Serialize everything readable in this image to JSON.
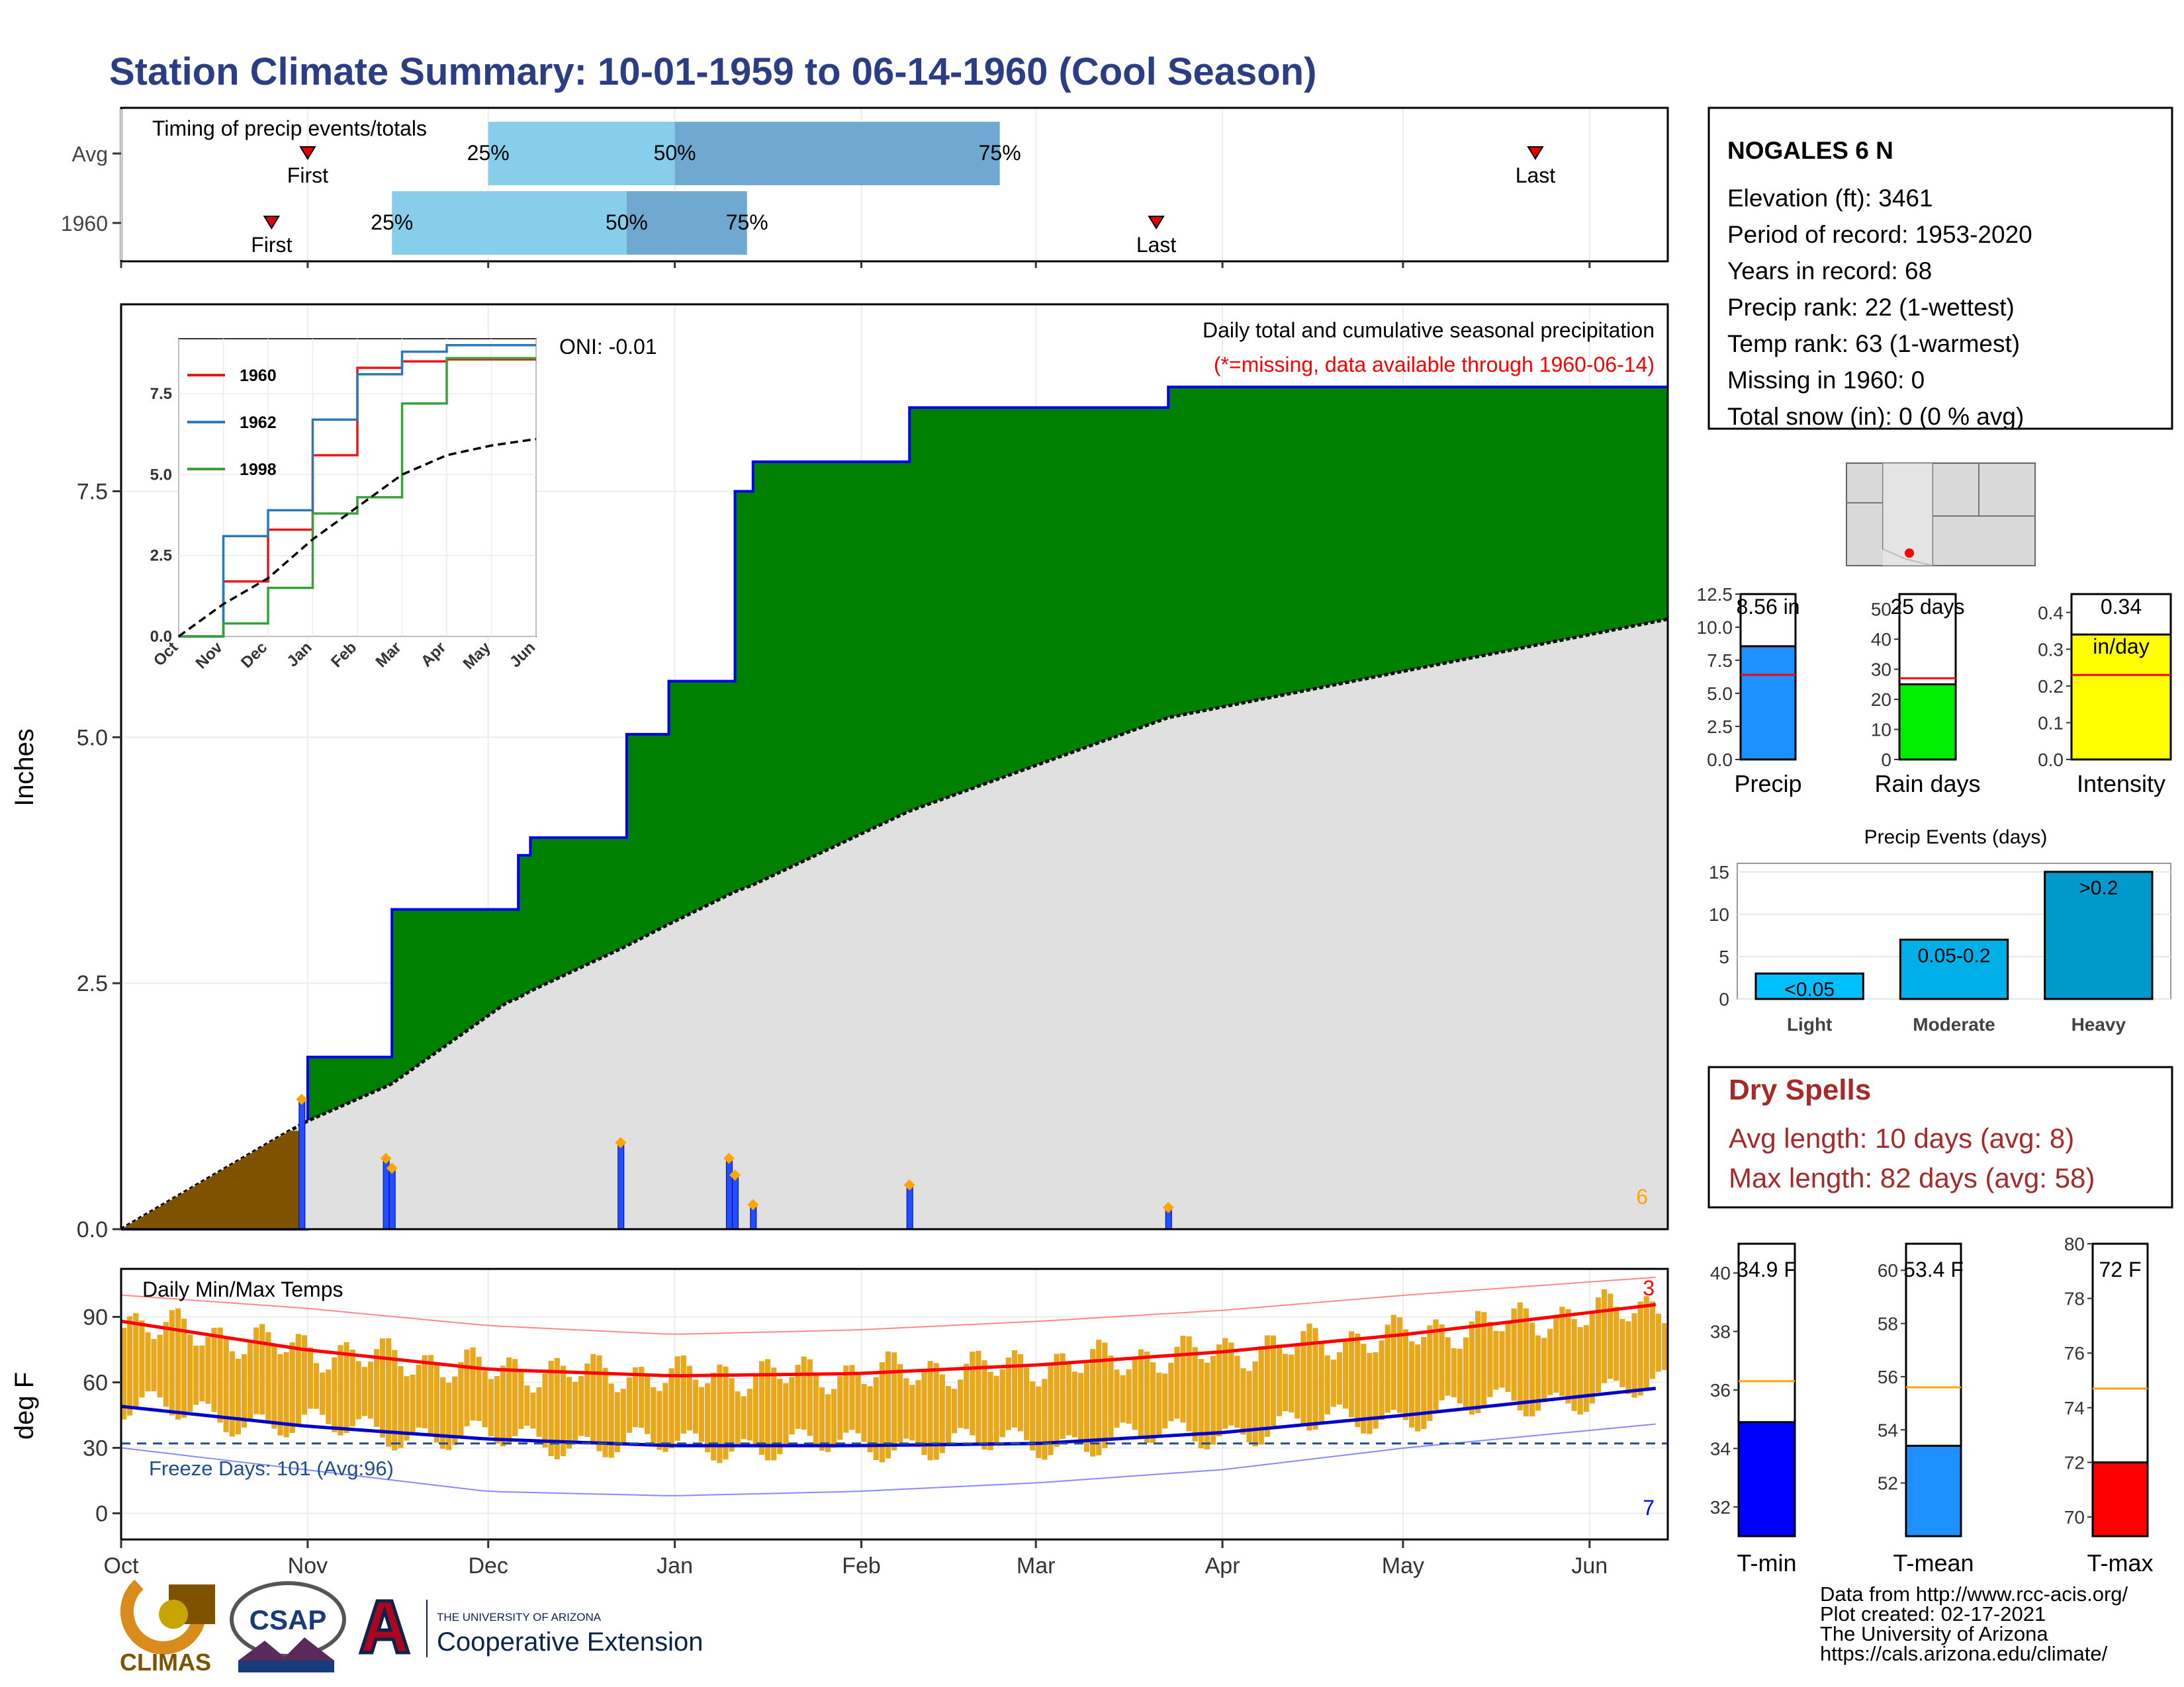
{
  "title": "Station Climate Summary: 10-01-1959 to 06-14-1960 (Cool Season)",
  "timing": {
    "title": "Timing of precip events/totals",
    "rows": [
      {
        "label": "Avg",
        "first_label": "First",
        "last_label": "Last",
        "first": "Nov 1",
        "p25": "Dec 1",
        "p50": "Jan 1",
        "p75": "Feb 24",
        "last": "May 23",
        "p25_label": "25%",
        "p50_label": "50%",
        "p75_label": "75%"
      },
      {
        "label": "1960",
        "first_label": "First",
        "last_label": "Last",
        "first": "Oct 26",
        "p25": "Nov 15",
        "p50": "Dec 24",
        "p75": "Jan 13",
        "last": "Mar 21",
        "p25_label": "25%",
        "p50_label": "50%",
        "p75_label": "75%"
      }
    ]
  },
  "precip_panel": {
    "ylabel": "Inches",
    "oni": "ONI: -0.01",
    "title": "Daily total and cumulative seasonal precipitation",
    "missing_note": "(*=missing, data available through 1960-06-14)",
    "count_label": "6",
    "yticks": [
      "0.0",
      "2.5",
      "5.0",
      "7.5"
    ],
    "colors": {
      "cumulative": "#008000",
      "average": "#e0e0e0",
      "pre_season": "#7f5200",
      "daily": "#1f4fff",
      "marker": "#ffa500"
    }
  },
  "inset": {
    "legend": [
      "1960",
      "1962",
      "1998"
    ],
    "colors": [
      "#e31a1c",
      "#2a7ab9",
      "#3aa13a"
    ],
    "yticks": [
      "0.0",
      "2.5",
      "5.0",
      "7.5"
    ],
    "xticks": [
      "Oct",
      "Nov",
      "Dec",
      "Jan",
      "Feb",
      "Mar",
      "Apr",
      "May",
      "Jun"
    ]
  },
  "temp_panel": {
    "ylabel": "deg F",
    "title": "Daily Min/Max Temps",
    "freeze": "Freeze Days: 101 (Avg:96)",
    "count_max": "3",
    "count_min": "7",
    "yticks": [
      "0",
      "30",
      "60",
      "90"
    ],
    "colors": {
      "bar": "#e8a81e",
      "max": "#ff0000",
      "min": "#0000cc"
    }
  },
  "months": [
    "Oct",
    "Nov",
    "Dec",
    "Jan",
    "Feb",
    "Mar",
    "Apr",
    "May",
    "Jun"
  ],
  "station": {
    "name": "NOGALES 6 N",
    "lines": [
      "Elevation (ft): 3461",
      "Period of record: 1953-2020",
      "Years in record: 68",
      "Precip rank: 22 (1-wettest)",
      "Temp rank: 63 (1-warmest)",
      "Missing in 1960: 0",
      "Total snow (in): 0 (0 % avg)"
    ]
  },
  "summary_bars": [
    {
      "label": "Precip",
      "value_text": "8.56 in",
      "value": 8.56,
      "avg": 6.4,
      "ymax": 12.5,
      "yticks": [
        "0.0",
        "2.5",
        "5.0",
        "7.5",
        "10.0",
        "12.5"
      ],
      "color": "#1e90ff"
    },
    {
      "label": "Rain days",
      "value_text": "25 days",
      "value": 25,
      "avg": 27,
      "ymax": 55,
      "yticks": [
        "0",
        "10",
        "20",
        "30",
        "40",
        "50"
      ],
      "color": "#00ee00"
    },
    {
      "label": "Intensity",
      "value_text": "0.34",
      "value_text2": "in/day",
      "value": 0.34,
      "avg": 0.23,
      "ymax": 0.45,
      "yticks": [
        "0.0",
        "0.1",
        "0.2",
        "0.3",
        "0.4"
      ],
      "color": "#ffff00"
    }
  ],
  "precip_events": {
    "title": "Precip Events (days)",
    "categories": [
      "Light",
      "Moderate",
      "Heavy"
    ],
    "labels": [
      "<0.05",
      "0.05-0.2",
      ">0.2"
    ],
    "values": [
      3,
      7,
      15
    ],
    "yticks": [
      "0",
      "5",
      "10",
      "15"
    ],
    "colors": [
      "#00bfff",
      "#00aee8",
      "#0099cc"
    ]
  },
  "dry_spells": {
    "title": "Dry Spells",
    "avg": "Avg length: 10 days (avg: 8)",
    "max": "Max length: 82 days (avg: 58)"
  },
  "temp_bars": [
    {
      "label": "T-min",
      "value_text": "34.9 F",
      "value": 34.9,
      "avg": 36.3,
      "ymin": 31,
      "ymax": 41,
      "yticks": [
        "32",
        "34",
        "36",
        "38",
        "40"
      ],
      "color": "#0000ff"
    },
    {
      "label": "T-mean",
      "value_text": "53.4 F",
      "value": 53.4,
      "avg": 55.6,
      "ymin": 50,
      "ymax": 61,
      "yticks": [
        "52",
        "54",
        "56",
        "58",
        "60"
      ],
      "color": "#1e90ff"
    },
    {
      "label": "T-max",
      "value_text": "72 F",
      "value": 72,
      "avg": 74.7,
      "ymin": 69.3,
      "ymax": 80,
      "yticks": [
        "70",
        "72",
        "74",
        "76",
        "78",
        "80"
      ],
      "color": "#ff0000"
    }
  ],
  "credits": [
    "Data from http://www.rcc-acis.org/",
    "Plot created: 02-17-2021",
    "The University of Arizona",
    "https://cals.arizona.edu/climate/"
  ],
  "logos": {
    "climas": "CLIMAS",
    "csap": "CSAP",
    "ua_small": "THE UNIVERSITY OF ARIZONA",
    "ua_big": "Cooperative Extension"
  },
  "chart_data": [
    {
      "type": "area",
      "title": "Daily total and cumulative seasonal precipitation",
      "ylabel": "Inches",
      "ylim": [
        0,
        9.4
      ],
      "x": [
        "Oct 1",
        "Oct 29",
        "Nov 1",
        "Nov 14",
        "Nov 15",
        "Dec 4",
        "Dec 6",
        "Dec 8",
        "Dec 23",
        "Dec 24",
        "Dec 31",
        "Jan 10",
        "Jan 11",
        "Jan 14",
        "Feb 9",
        "Mar 23",
        "Jun 14"
      ],
      "series": [
        {
          "name": "1960 cumulative",
          "values": [
            0,
            0,
            1.75,
            1.75,
            3.25,
            3.25,
            3.8,
            3.98,
            3.98,
            5.03,
            5.57,
            5.57,
            7.5,
            7.8,
            8.35,
            8.56,
            8.56
          ]
        },
        {
          "name": "Average cumulative",
          "values": [
            0,
            1.0,
            1.1,
            1.45,
            1.48,
            2.3,
            2.35,
            2.42,
            2.85,
            2.88,
            3.1,
            3.4,
            3.43,
            3.5,
            4.25,
            5.2,
            6.2
          ]
        }
      ],
      "daily_events": [
        {
          "date": "Oct 31",
          "value": 1.32
        },
        {
          "date": "Nov 14",
          "value": 0.72
        },
        {
          "date": "Nov 15",
          "value": 0.62
        },
        {
          "date": "Dec 23",
          "value": 0.88
        },
        {
          "date": "Jan 10",
          "value": 0.72
        },
        {
          "date": "Jan 11",
          "value": 0.55
        },
        {
          "date": "Jan 14",
          "value": 0.25
        },
        {
          "date": "Feb 9",
          "value": 0.45
        },
        {
          "date": "Mar 23",
          "value": 0.22
        }
      ]
    },
    {
      "type": "line",
      "title": "Daily Min/Max Temps",
      "ylabel": "deg F",
      "ylim": [
        -12,
        112
      ],
      "categories": [
        "Oct",
        "Nov",
        "Dec",
        "Jan",
        "Feb",
        "Mar",
        "Apr",
        "May",
        "Jun"
      ],
      "series": [
        {
          "name": "Avg max",
          "values": [
            88,
            75,
            66,
            63,
            64,
            68,
            74,
            82,
            92
          ]
        },
        {
          "name": "Avg min",
          "values": [
            49,
            40,
            34,
            31,
            31,
            32,
            37,
            45,
            54
          ]
        },
        {
          "name": "Record high",
          "values": [
            100,
            94,
            86,
            82,
            84,
            88,
            93,
            100,
            106
          ]
        },
        {
          "name": "Record low",
          "values": [
            30,
            20,
            10,
            8,
            10,
            14,
            20,
            30,
            38
          ]
        }
      ]
    },
    {
      "type": "line",
      "title": "",
      "ylim": [
        0,
        9.2
      ],
      "x": [
        "Oct",
        "Nov",
        "Dec",
        "Jan",
        "Feb",
        "Mar",
        "Apr",
        "May",
        "Jun"
      ],
      "series": [
        {
          "name": "1960",
          "values": [
            0,
            1.7,
            3.3,
            5.6,
            8.3,
            8.5,
            8.56,
            8.56,
            8.56
          ]
        },
        {
          "name": "1962",
          "values": [
            0,
            3.1,
            3.9,
            6.7,
            8.1,
            8.8,
            9.0,
            9.0,
            9.0
          ]
        },
        {
          "name": "1998",
          "values": [
            0,
            0.4,
            1.5,
            3.8,
            4.3,
            7.2,
            8.6,
            8.6,
            8.6
          ]
        },
        {
          "name": "Average",
          "values": [
            0,
            1.0,
            1.8,
            3.0,
            4.0,
            5.0,
            5.6,
            5.9,
            6.1
          ]
        }
      ]
    }
  ]
}
